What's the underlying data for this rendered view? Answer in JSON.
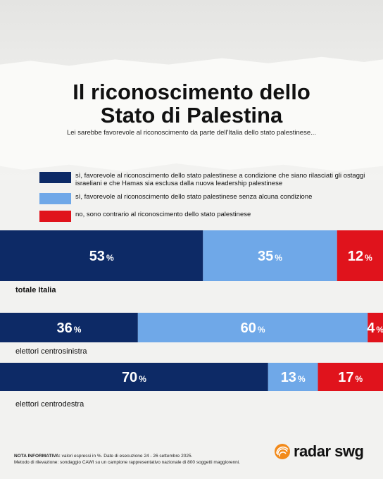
{
  "title_line1": "Il riconoscimento dello",
  "title_line2": "Stato di Palestina",
  "subtitle": "Lei sarebbe favorevole al riconoscimento da parte dell'Italia dello stato palestinese...",
  "colors": {
    "dark_blue": "#0d2a66",
    "light_blue": "#6fa8e8",
    "red": "#e0131c"
  },
  "legend": [
    {
      "label": "sì, favorevole al riconoscimento dello stato palestinese a condizione che siano rilasciati gli ostaggi israeliani e che Hamas sia esclusa dalla nuova leadership palestinese",
      "color": "#0d2a66"
    },
    {
      "label": "sì, favorevole al riconoscimento dello stato palestinese senza alcuna condizione",
      "color": "#6fa8e8"
    },
    {
      "label": "no, sono contrario al riconoscimento dello stato palestinese",
      "color": "#e0131c"
    }
  ],
  "chart_data": {
    "type": "bar",
    "orientation": "horizontal-stacked-100",
    "categories": [
      "totale Italia",
      "elettori centrosinistra",
      "elettori centrodestra"
    ],
    "series": [
      {
        "name": "sì, favorevole al riconoscimento dello stato palestinese a condizione che siano rilasciati gli ostaggi israeliani e che Hamas sia esclusa dalla nuova leadership palestinese",
        "values": [
          53,
          36,
          70
        ],
        "color": "#0d2a66"
      },
      {
        "name": "sì, favorevole al riconoscimento dello stato palestinese senza alcuna condizione",
        "values": [
          35,
          60,
          13
        ],
        "color": "#6fa8e8"
      },
      {
        "name": "no, sono contrario al riconoscimento dello stato palestinese",
        "values": [
          12,
          4,
          17
        ],
        "color": "#e0131c"
      }
    ],
    "unit": "%",
    "xlim": [
      0,
      100
    ]
  },
  "footnote": {
    "label": "NOTA INFORMATIVA:",
    "line1": " valori espressi in %. Date di esecuzione 24 - 26 settembre 2025.",
    "line2": "Metodo di rilevazione: sondaggio CAWI su un campione rappresentativo nazionale di 800 soggetti maggiorenni."
  },
  "logo": {
    "text": "radar swg",
    "icon": "radar-logo-icon"
  }
}
